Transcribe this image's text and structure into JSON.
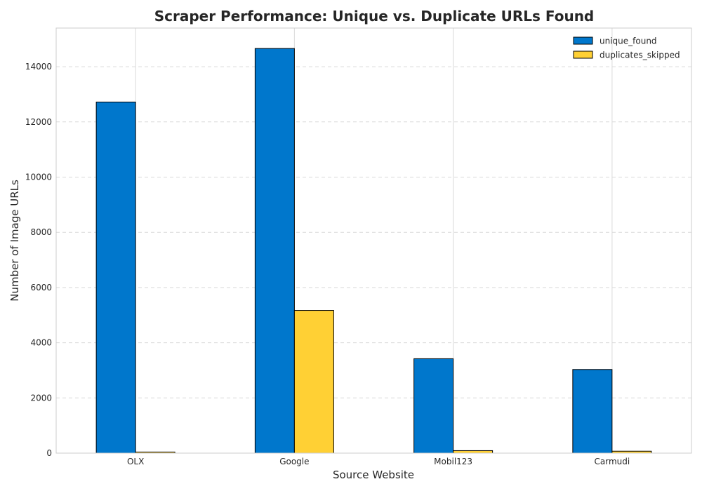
{
  "chart_data": {
    "type": "bar",
    "title": "Scraper Performance: Unique vs. Duplicate URLs Found",
    "xlabel": "Source Website",
    "ylabel": "Number of Image URLs",
    "categories": [
      "OLX",
      "Google",
      "Mobil123",
      "Carmudi"
    ],
    "series": [
      {
        "name": "unique_found",
        "values": [
          12720,
          14660,
          3420,
          3030
        ],
        "color": "#0077CC"
      },
      {
        "name": "duplicates_skipped",
        "values": [
          40,
          5170,
          90,
          70
        ],
        "color": "#FFD034"
      }
    ],
    "ylim": [
      0,
      15400
    ],
    "yticks": [
      0,
      2000,
      4000,
      6000,
      8000,
      10000,
      12000,
      14000
    ],
    "grid": true,
    "legend_position": "top-right"
  }
}
